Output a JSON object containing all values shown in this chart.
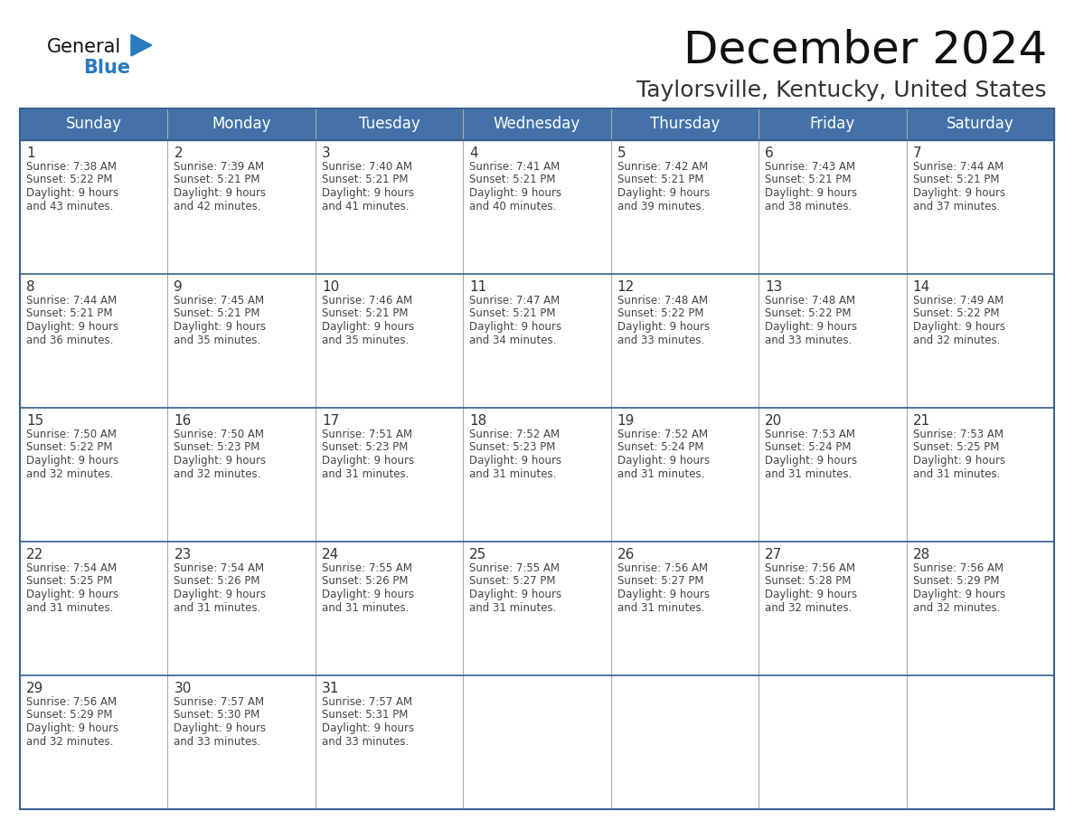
{
  "title": "December 2024",
  "subtitle": "Taylorsville, Kentucky, United States",
  "days_of_week": [
    "Sunday",
    "Monday",
    "Tuesday",
    "Wednesday",
    "Thursday",
    "Friday",
    "Saturday"
  ],
  "header_bg": "#4472a8",
  "header_text": "#ffffff",
  "title_color": "#111111",
  "subtitle_color": "#333333",
  "logo_general_color": "#111111",
  "logo_blue_color": "#2a7abf",
  "day_num_color": "#333333",
  "info_text_color": "#444444",
  "grid_line_color": "#3a6090",
  "cell_line_color": "#aaaaaa",
  "figure_bg": "#ffffff",
  "weeks": [
    [
      {
        "day": 1,
        "sunrise": "7:38 AM",
        "sunset": "5:22 PM",
        "dl1": "9 hours",
        "dl2": "and 43 minutes."
      },
      {
        "day": 2,
        "sunrise": "7:39 AM",
        "sunset": "5:21 PM",
        "dl1": "9 hours",
        "dl2": "and 42 minutes."
      },
      {
        "day": 3,
        "sunrise": "7:40 AM",
        "sunset": "5:21 PM",
        "dl1": "9 hours",
        "dl2": "and 41 minutes."
      },
      {
        "day": 4,
        "sunrise": "7:41 AM",
        "sunset": "5:21 PM",
        "dl1": "9 hours",
        "dl2": "and 40 minutes."
      },
      {
        "day": 5,
        "sunrise": "7:42 AM",
        "sunset": "5:21 PM",
        "dl1": "9 hours",
        "dl2": "and 39 minutes."
      },
      {
        "day": 6,
        "sunrise": "7:43 AM",
        "sunset": "5:21 PM",
        "dl1": "9 hours",
        "dl2": "and 38 minutes."
      },
      {
        "day": 7,
        "sunrise": "7:44 AM",
        "sunset": "5:21 PM",
        "dl1": "9 hours",
        "dl2": "and 37 minutes."
      }
    ],
    [
      {
        "day": 8,
        "sunrise": "7:44 AM",
        "sunset": "5:21 PM",
        "dl1": "9 hours",
        "dl2": "and 36 minutes."
      },
      {
        "day": 9,
        "sunrise": "7:45 AM",
        "sunset": "5:21 PM",
        "dl1": "9 hours",
        "dl2": "and 35 minutes."
      },
      {
        "day": 10,
        "sunrise": "7:46 AM",
        "sunset": "5:21 PM",
        "dl1": "9 hours",
        "dl2": "and 35 minutes."
      },
      {
        "day": 11,
        "sunrise": "7:47 AM",
        "sunset": "5:21 PM",
        "dl1": "9 hours",
        "dl2": "and 34 minutes."
      },
      {
        "day": 12,
        "sunrise": "7:48 AM",
        "sunset": "5:22 PM",
        "dl1": "9 hours",
        "dl2": "and 33 minutes."
      },
      {
        "day": 13,
        "sunrise": "7:48 AM",
        "sunset": "5:22 PM",
        "dl1": "9 hours",
        "dl2": "and 33 minutes."
      },
      {
        "day": 14,
        "sunrise": "7:49 AM",
        "sunset": "5:22 PM",
        "dl1": "9 hours",
        "dl2": "and 32 minutes."
      }
    ],
    [
      {
        "day": 15,
        "sunrise": "7:50 AM",
        "sunset": "5:22 PM",
        "dl1": "9 hours",
        "dl2": "and 32 minutes."
      },
      {
        "day": 16,
        "sunrise": "7:50 AM",
        "sunset": "5:23 PM",
        "dl1": "9 hours",
        "dl2": "and 32 minutes."
      },
      {
        "day": 17,
        "sunrise": "7:51 AM",
        "sunset": "5:23 PM",
        "dl1": "9 hours",
        "dl2": "and 31 minutes."
      },
      {
        "day": 18,
        "sunrise": "7:52 AM",
        "sunset": "5:23 PM",
        "dl1": "9 hours",
        "dl2": "and 31 minutes."
      },
      {
        "day": 19,
        "sunrise": "7:52 AM",
        "sunset": "5:24 PM",
        "dl1": "9 hours",
        "dl2": "and 31 minutes."
      },
      {
        "day": 20,
        "sunrise": "7:53 AM",
        "sunset": "5:24 PM",
        "dl1": "9 hours",
        "dl2": "and 31 minutes."
      },
      {
        "day": 21,
        "sunrise": "7:53 AM",
        "sunset": "5:25 PM",
        "dl1": "9 hours",
        "dl2": "and 31 minutes."
      }
    ],
    [
      {
        "day": 22,
        "sunrise": "7:54 AM",
        "sunset": "5:25 PM",
        "dl1": "9 hours",
        "dl2": "and 31 minutes."
      },
      {
        "day": 23,
        "sunrise": "7:54 AM",
        "sunset": "5:26 PM",
        "dl1": "9 hours",
        "dl2": "and 31 minutes."
      },
      {
        "day": 24,
        "sunrise": "7:55 AM",
        "sunset": "5:26 PM",
        "dl1": "9 hours",
        "dl2": "and 31 minutes."
      },
      {
        "day": 25,
        "sunrise": "7:55 AM",
        "sunset": "5:27 PM",
        "dl1": "9 hours",
        "dl2": "and 31 minutes."
      },
      {
        "day": 26,
        "sunrise": "7:56 AM",
        "sunset": "5:27 PM",
        "dl1": "9 hours",
        "dl2": "and 31 minutes."
      },
      {
        "day": 27,
        "sunrise": "7:56 AM",
        "sunset": "5:28 PM",
        "dl1": "9 hours",
        "dl2": "and 32 minutes."
      },
      {
        "day": 28,
        "sunrise": "7:56 AM",
        "sunset": "5:29 PM",
        "dl1": "9 hours",
        "dl2": "and 32 minutes."
      }
    ],
    [
      {
        "day": 29,
        "sunrise": "7:56 AM",
        "sunset": "5:29 PM",
        "dl1": "9 hours",
        "dl2": "and 32 minutes."
      },
      {
        "day": 30,
        "sunrise": "7:57 AM",
        "sunset": "5:30 PM",
        "dl1": "9 hours",
        "dl2": "and 33 minutes."
      },
      {
        "day": 31,
        "sunrise": "7:57 AM",
        "sunset": "5:31 PM",
        "dl1": "9 hours",
        "dl2": "and 33 minutes."
      },
      null,
      null,
      null,
      null
    ]
  ]
}
